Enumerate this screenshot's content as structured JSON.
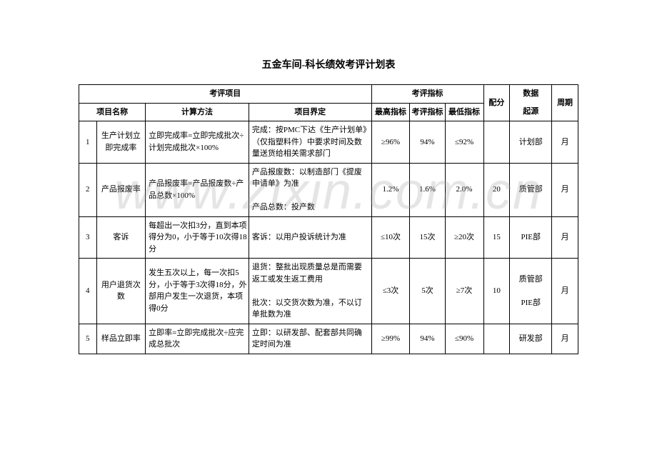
{
  "title": "五金车间-科长绩效考评计划表",
  "watermark": "www.zixin.com.cn",
  "headers": {
    "group_project": "考评项目",
    "group_indicator": "考评指标",
    "name": "项目名称",
    "calc": "计算方法",
    "definition": "项目界定",
    "max": "最高指标",
    "mid": "考评指标",
    "min": "最低指标",
    "score": "配分",
    "source": "数据起源",
    "cycle": "周期"
  },
  "rows": [
    {
      "idx": "1",
      "name": "生产计划立即完成率",
      "calc": "立即完成率=立即完成批次÷计划完成批次×100%",
      "definition": "完成：按PMC下达《生产计划单》（仅指塑料件）中要求时间及数量送货给相关需求部门",
      "max": "≥96%",
      "mid": "94%",
      "min": "≤92%",
      "score": "",
      "source": "计划部",
      "cycle": "月"
    },
    {
      "idx": "2",
      "name": "产品报废率",
      "calc": "产品报废率=产品报废数÷产品总数×100%",
      "definition": "产品报废数：以制造部门《提废申请单》为准\n\n产品总数：投产数",
      "max": "1.2%",
      "mid": "1.6%",
      "min": "2.0%",
      "score": "20",
      "source": "质管部",
      "cycle": "月"
    },
    {
      "idx": "3",
      "name": "客诉",
      "calc": "每超出一次扣3分，直到本项得分为0，小于等于10次得18分",
      "definition": "客诉：以用户投诉统计为准",
      "max": "≤10次",
      "mid": "15次",
      "min": "≥20次",
      "score": "15",
      "source": "PIE部",
      "cycle": "月"
    },
    {
      "idx": "4",
      "name": "用户退货次数",
      "calc": "发生五次以上，每一次扣5分，小于等于3次得18分，外部用户发生一次退货，本项得0分",
      "definition": "退货：整批出现质量总是而需要返工或发生返工费用\n\n批次：以交货次数为准，不以订单批数为准",
      "max": "≤3次",
      "mid": "5次",
      "min": "≥7次",
      "score": "10",
      "source": "质管部\n\nPIE部",
      "cycle": "月"
    },
    {
      "idx": "5",
      "name": "样品立即率",
      "calc": "立即率=立即完成批次÷应完成总批次",
      "definition": "立即：以研发部、配套部共同确定时间为准",
      "max": "≥99%",
      "mid": "94%",
      "min": "≤90%",
      "score": "",
      "source": "研发部",
      "cycle": "月"
    }
  ]
}
